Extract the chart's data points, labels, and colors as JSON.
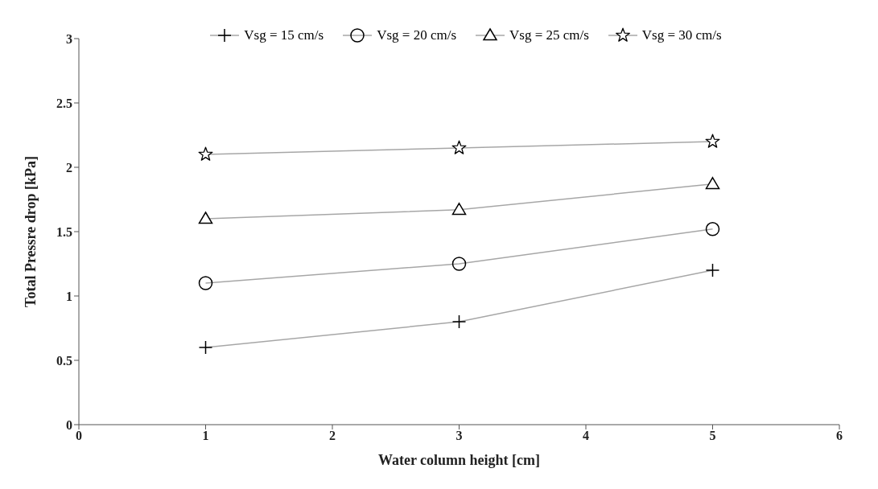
{
  "chart_data": {
    "type": "line",
    "xlabel": "Water column height [cm]",
    "ylabel": "Total Pressre drop [kPa]",
    "x": [
      1,
      3,
      5
    ],
    "series": [
      {
        "name": "Vsg = 15 cm/s",
        "color": "#000000",
        "marker": "cross",
        "values": [
          0.6,
          0.8,
          1.2
        ]
      },
      {
        "name": "Vsg = 20 cm/s",
        "color": "#000000",
        "marker": "circle",
        "values": [
          1.1,
          1.25,
          1.52
        ]
      },
      {
        "name": "Vsg = 25 cm/s",
        "color": "#000000",
        "marker": "triangle",
        "values": [
          1.6,
          1.67,
          1.87
        ]
      },
      {
        "name": "Vsg = 30 cm/s",
        "color": "#000000",
        "marker": "star",
        "values": [
          2.1,
          2.15,
          2.2
        ]
      }
    ],
    "xlim": [
      0,
      6
    ],
    "xticks": [
      0,
      1,
      2,
      3,
      4,
      5,
      6
    ],
    "ylim": [
      0,
      3
    ],
    "yticks": [
      0,
      0.5,
      1,
      1.5,
      2,
      2.5,
      3
    ],
    "grid": false,
    "legend": "top",
    "line_style": "solid"
  }
}
